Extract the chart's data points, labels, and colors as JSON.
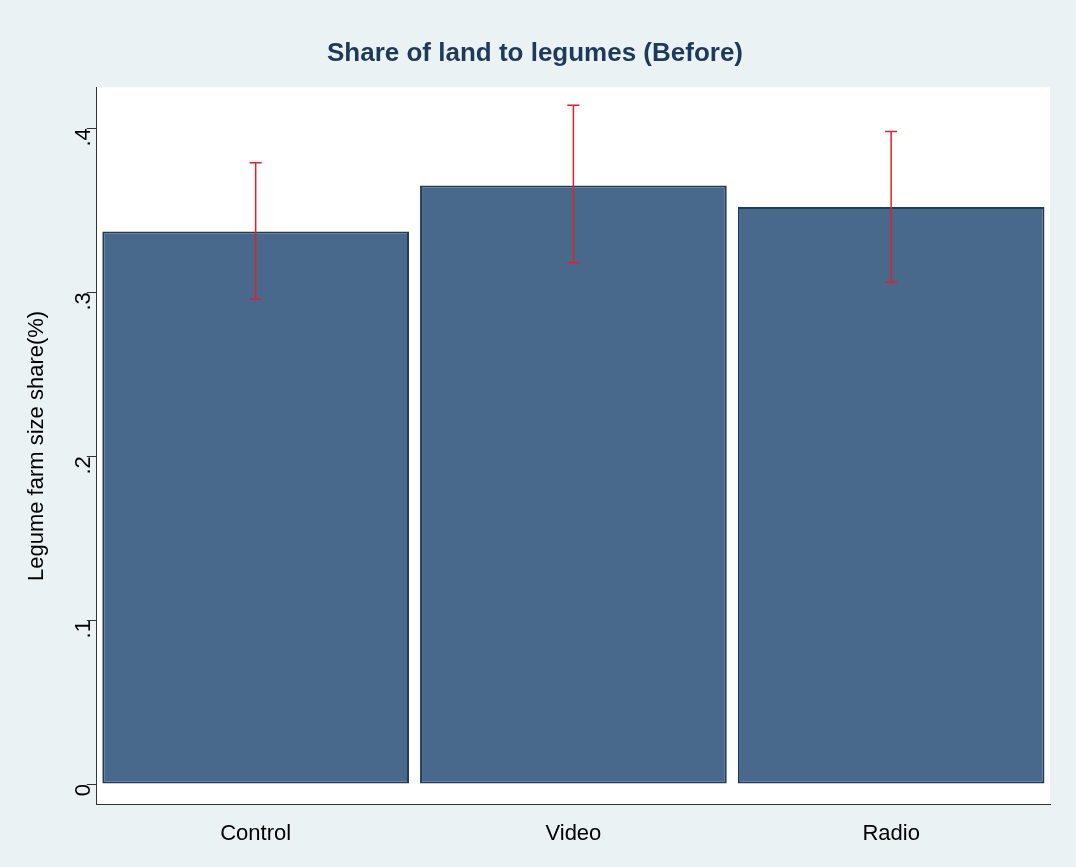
{
  "chart_data": {
    "type": "bar",
    "title": "Share of land to legumes (Before)",
    "ylabel": "Legume farm size share(%)",
    "categories": [
      "Control",
      "Video",
      "Radio"
    ],
    "values": [
      0.337,
      0.365,
      0.352
    ],
    "errors": [
      [
        0.296,
        0.379
      ],
      [
        0.318,
        0.414
      ],
      [
        0.306,
        0.398
      ]
    ],
    "color": "#48698b",
    "ylim": [
      -0.0125,
      0.425
    ],
    "yticks": [
      {
        "value": 0,
        "label": "0"
      },
      {
        "value": 0.1,
        "label": ".1"
      },
      {
        "value": 0.2,
        "label": ".2"
      },
      {
        "value": 0.3,
        "label": ".3"
      },
      {
        "value": 0.4,
        "label": ".4"
      }
    ],
    "grid": false,
    "legend": false
  }
}
